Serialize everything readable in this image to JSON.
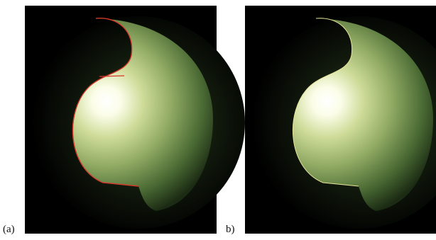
{
  "panels": [
    {
      "label": "(a)"
    },
    {
      "label": "b)"
    }
  ]
}
